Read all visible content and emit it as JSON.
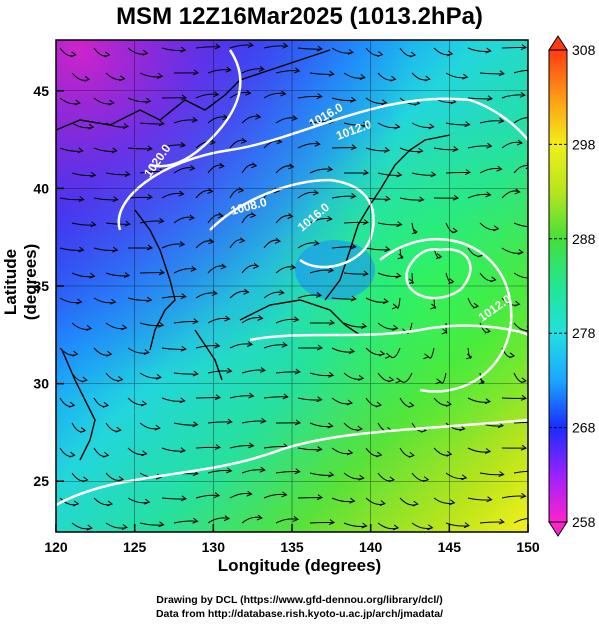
{
  "title": "MSM 12Z16Mar2025 (1013.2hPa)",
  "axes": {
    "xlabel": "Longitude (degrees)",
    "ylabel": "Latitude  (degrees)",
    "xticks": [
      "120",
      "125",
      "130",
      "135",
      "140",
      "145",
      "150"
    ],
    "yticks": [
      "25",
      "30",
      "35",
      "40",
      "45"
    ],
    "xlim": [
      120,
      150
    ],
    "ylim": [
      22.4,
      47.6
    ]
  },
  "colorbar": {
    "ticks": [
      "308",
      "298",
      "288",
      "278",
      "268",
      "258"
    ],
    "range": [
      258,
      308
    ],
    "colors": [
      "#ff22cc",
      "#9a22ff",
      "#1a2cff",
      "#1aa6ff",
      "#22e0e0",
      "#22e690",
      "#44e03a",
      "#b6e61e",
      "#f2ee1a",
      "#ff9a14",
      "#ff3a14"
    ]
  },
  "contour_labels": [
    "1020.0",
    "1016.0",
    "1012.0",
    "1008.0",
    "1016.0",
    "1012.0"
  ],
  "credits": {
    "line1": "Drawing by DCL (https://www.gfd-dennou.org/library/dcl/)",
    "line2": "Data from http://database.rish.kyoto-u.ac.jp/arch/jmadata/"
  }
}
